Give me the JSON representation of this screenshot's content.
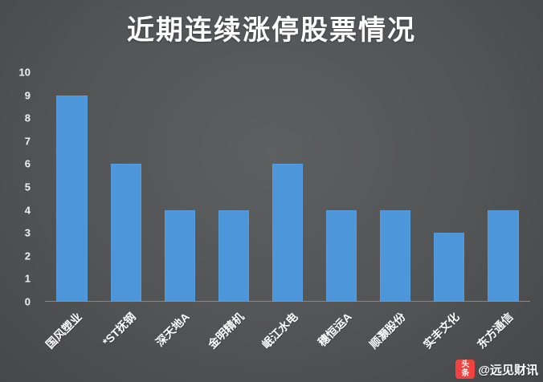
{
  "title": "近期连续涨停股票情况",
  "chart_data": {
    "type": "bar",
    "title": "近期连续涨停股票情况",
    "categories": [
      "国风塑业",
      "*ST抚钢",
      "深天地A",
      "金明精机",
      "岷江水电",
      "穗恒运A",
      "顺灏股份",
      "实丰文化",
      "东方通信"
    ],
    "values": [
      9,
      6,
      4,
      4,
      6,
      4,
      4,
      3,
      4
    ],
    "xlabel": "",
    "ylabel": "",
    "ylim": [
      0,
      10
    ],
    "yticks": [
      0,
      1,
      2,
      3,
      4,
      5,
      6,
      7,
      8,
      9,
      10
    ],
    "bar_color": "#4D96D9",
    "grid": false,
    "legend": false
  },
  "watermark": {
    "badge_text": "头条",
    "handle": "@远见财讯",
    "badge_color": "#f0433f"
  },
  "colors": {
    "background": "#535456",
    "text": "#ffffff",
    "axis_line": "#86878a"
  }
}
